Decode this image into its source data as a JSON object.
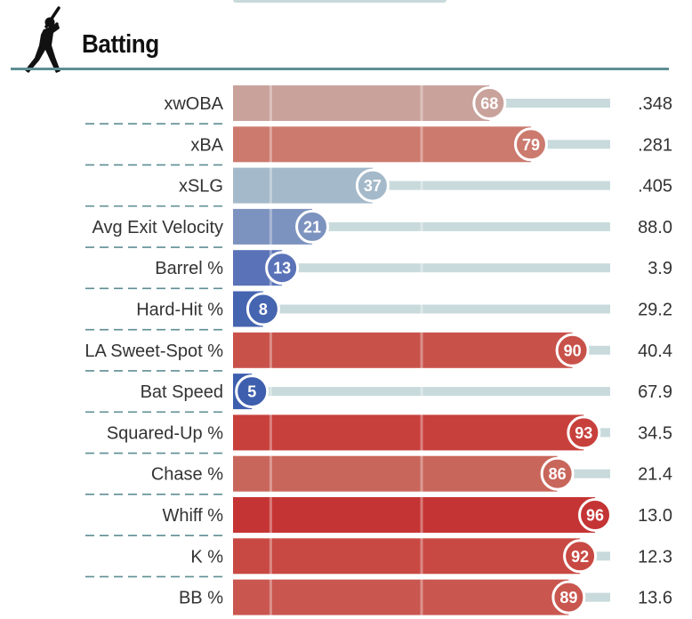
{
  "section": {
    "title": "Batting",
    "icon": "batter-silhouette-icon"
  },
  "chart_data": {
    "type": "bar",
    "orientation": "horizontal",
    "xlim": [
      0,
      100
    ],
    "reference_lines": [
      10,
      50
    ],
    "categories": [
      "xwOBA",
      "xBA",
      "xSLG",
      "Avg Exit Velocity",
      "Barrel %",
      "Hard-Hit %",
      "LA Sweet-Spot %",
      "Bat Speed",
      "Squared-Up %",
      "Chase %",
      "Whiff %",
      "K %",
      "BB %"
    ],
    "percentiles": [
      68,
      79,
      37,
      21,
      13,
      8,
      90,
      5,
      93,
      86,
      96,
      92,
      89
    ],
    "values": [
      ".348",
      ".281",
      ".405",
      "88.0",
      "3.9",
      "29.2",
      "40.4",
      "67.9",
      "34.5",
      "21.4",
      "13.0",
      "12.3",
      "13.6"
    ],
    "colors": [
      "#c9a29c",
      "#cc7a6e",
      "#a4b9c9",
      "#7d93bf",
      "#5a73b8",
      "#4565b0",
      "#c8524a",
      "#3e5fae",
      "#c8403c",
      "#c9665b",
      "#c53434",
      "#c84943",
      "#c9574f"
    ],
    "track_color": "#c9dadc",
    "divider_color": "#5e8e93"
  }
}
